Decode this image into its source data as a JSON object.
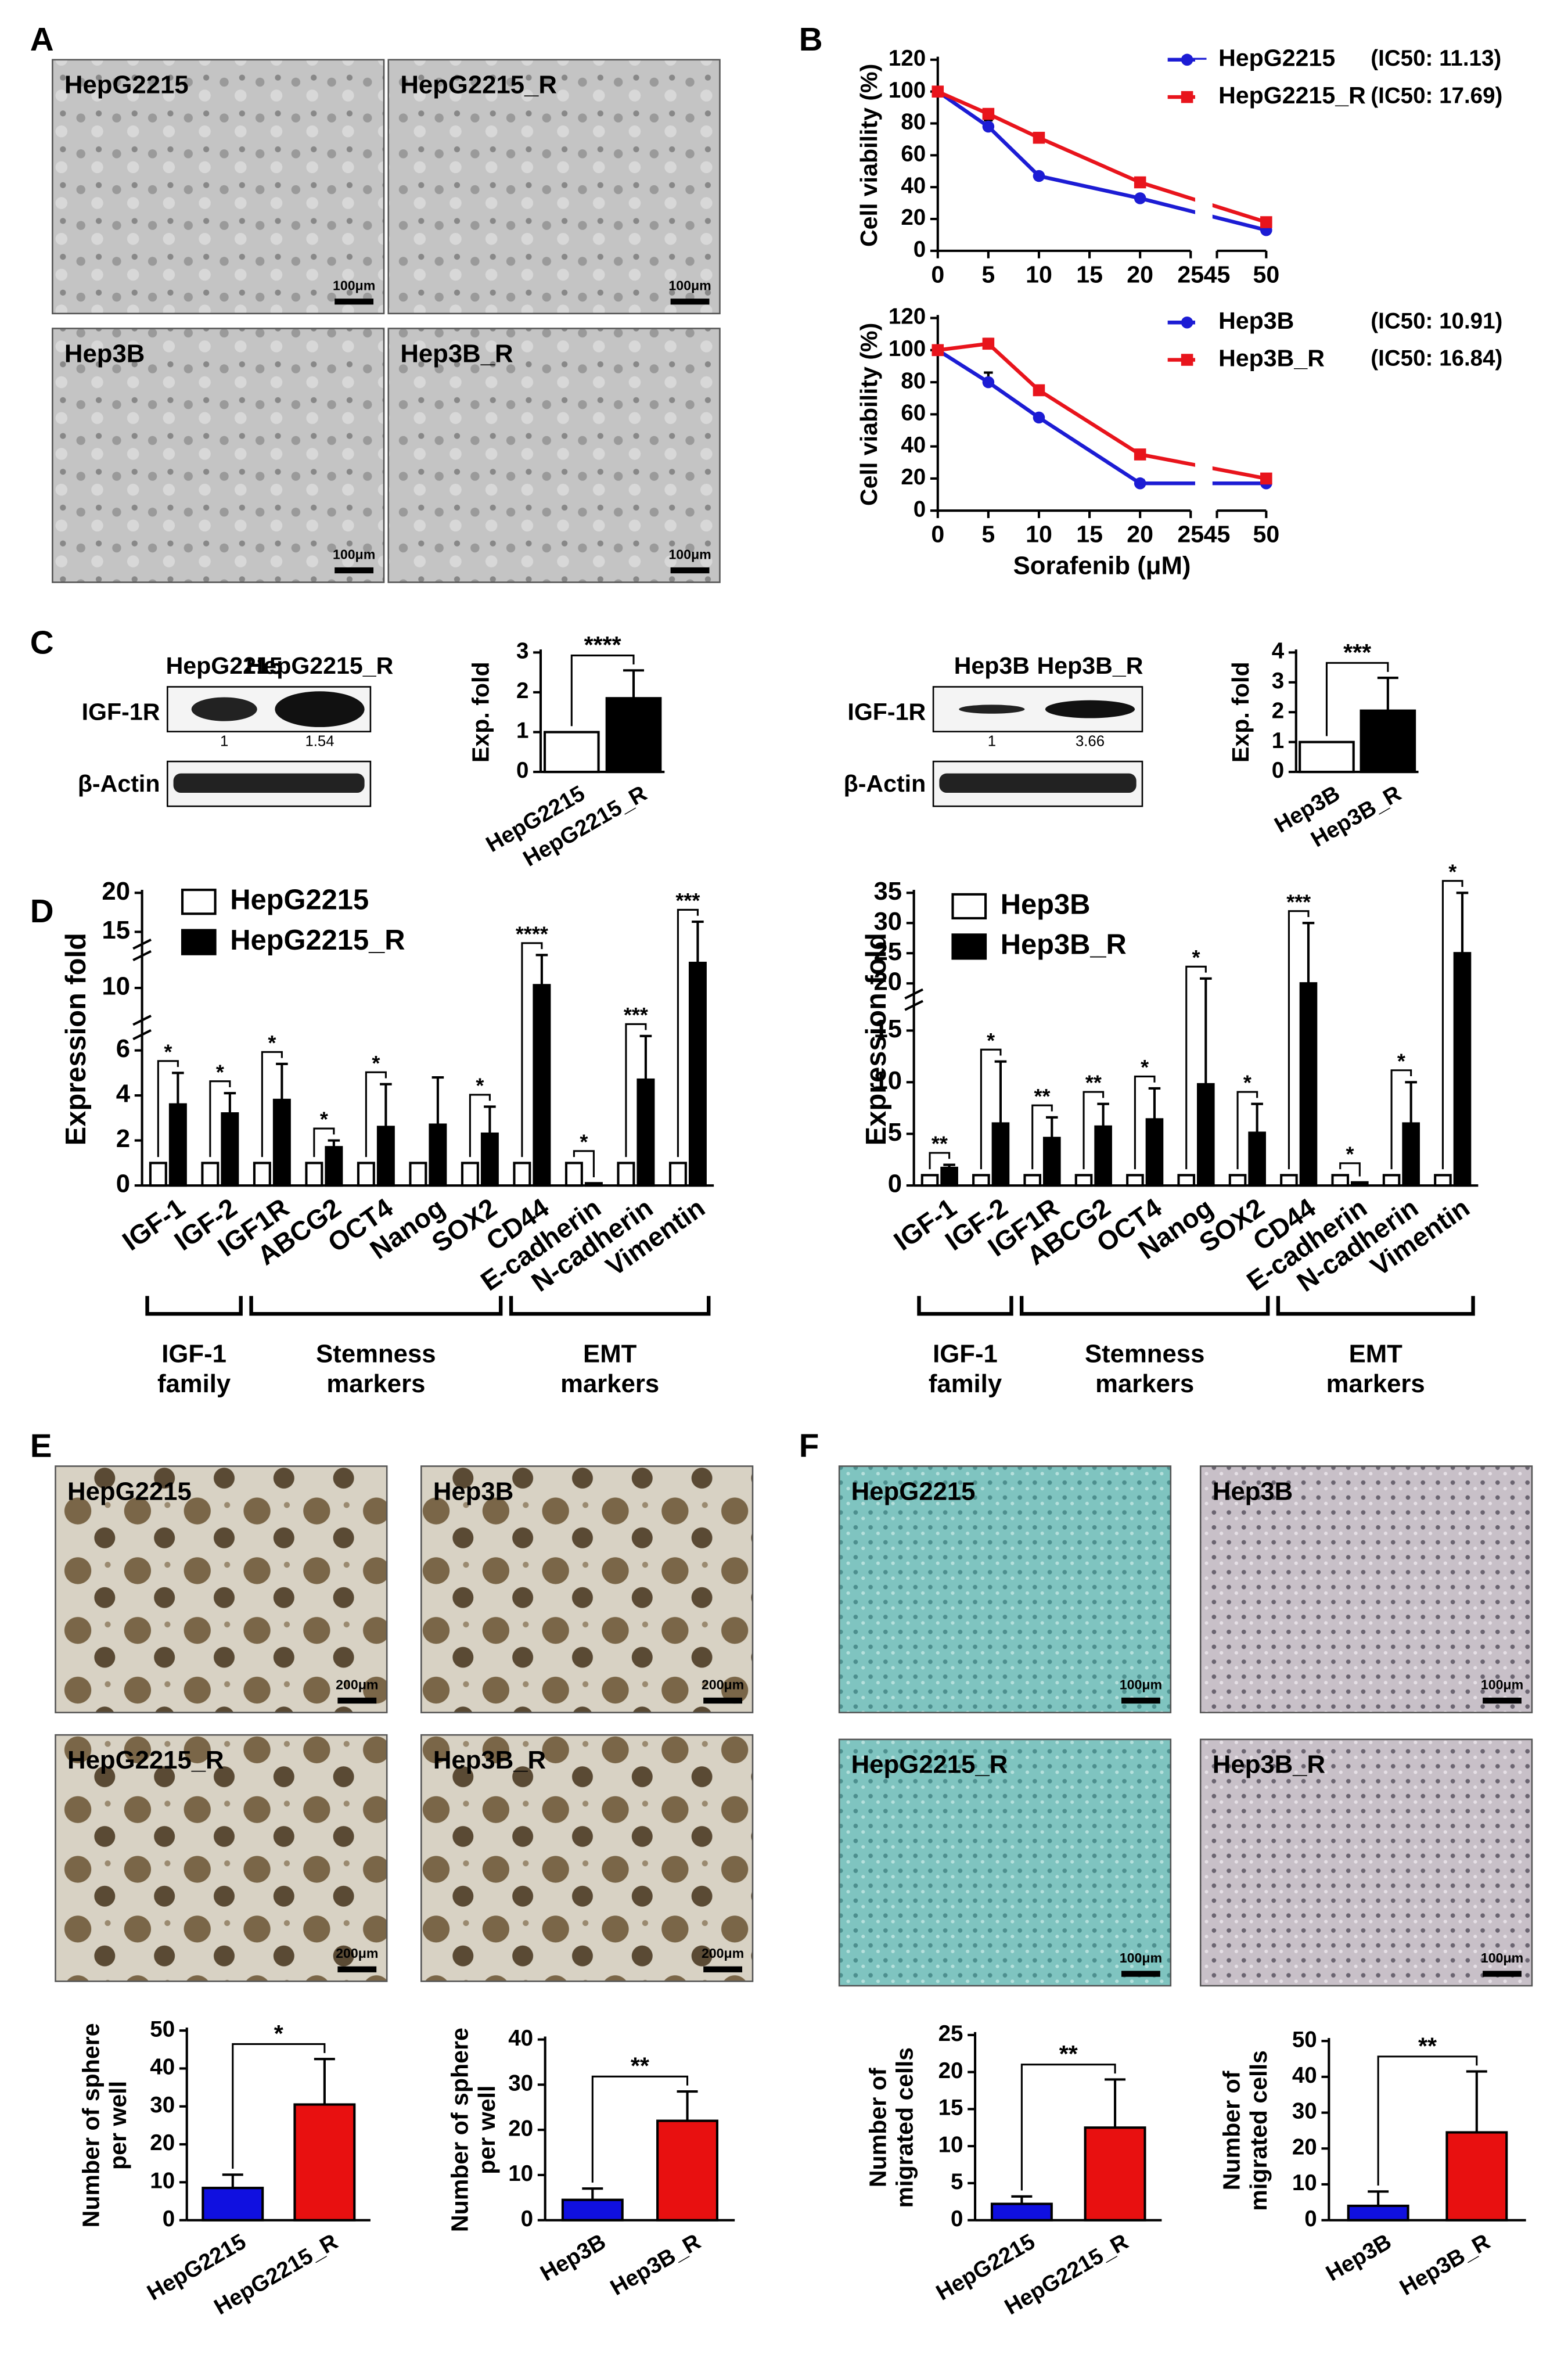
{
  "panels": {
    "letters": [
      "A",
      "B",
      "C",
      "D",
      "E",
      "F"
    ],
    "a_images": [
      "HepG2215",
      "HepG2215_R",
      "Hep3B",
      "Hep3B_R"
    ],
    "a_scale": "100μm",
    "c_blots": [
      {
        "lanes": [
          "HepG2215",
          "HepG2215_R"
        ],
        "rows": [
          "IGF-1R",
          "β-Actin"
        ],
        "band_values": [
          1,
          1.54
        ]
      },
      {
        "lanes": [
          "Hep3B",
          "Hep3B_R"
        ],
        "rows": [
          "IGF-1R",
          "β-Actin"
        ],
        "band_values": [
          1,
          3.66
        ]
      }
    ],
    "e_images": [
      "HepG2215",
      "Hep3B",
      "HepG2215_R",
      "Hep3B_R"
    ],
    "e_scale": "200μm",
    "f_images": [
      "HepG2215",
      "Hep3B",
      "HepG2215_R",
      "Hep3B_R"
    ],
    "f_scale": "100μm"
  },
  "chart_data": [
    {
      "type": "line",
      "ylabel": "Cell viability (%)",
      "x": [
        0,
        5,
        10,
        20,
        50
      ],
      "xlim": [
        0,
        50
      ],
      "xbreak": [
        25,
        45
      ],
      "xticks": [
        0,
        5,
        10,
        15,
        20,
        25,
        45,
        50
      ],
      "ylim": [
        0,
        120
      ],
      "yticks": [
        0,
        20,
        40,
        60,
        80,
        100,
        120
      ],
      "series": [
        {
          "name": "HepG2215",
          "color": "#1c1cd4",
          "marker": "circle",
          "annotation": "(IC50: 11.13)",
          "values": [
            100,
            78,
            47,
            33,
            13
          ],
          "errors": [
            0,
            4,
            1,
            1,
            2
          ]
        },
        {
          "name": "HepG2215_R",
          "color": "#e8141c",
          "marker": "square",
          "annotation": "(IC50: 17.69)",
          "values": [
            100,
            86,
            71,
            43,
            18
          ],
          "errors": [
            0,
            1,
            2,
            2,
            1
          ]
        }
      ]
    },
    {
      "type": "line",
      "ylabel": "Cell viability (%)",
      "xlabel": "Sorafenib (μM)",
      "x": [
        0,
        5,
        10,
        20,
        50
      ],
      "xlim": [
        0,
        50
      ],
      "xbreak": [
        25,
        45
      ],
      "xticks": [
        0,
        5,
        10,
        15,
        20,
        25,
        45,
        50
      ],
      "ylim": [
        0,
        120
      ],
      "yticks": [
        0,
        20,
        40,
        60,
        80,
        100,
        120
      ],
      "series": [
        {
          "name": "Hep3B",
          "color": "#1c1cd4",
          "marker": "circle",
          "annotation": "(IC50: 10.91)",
          "values": [
            100,
            80,
            58,
            17,
            17
          ],
          "errors": [
            0,
            6,
            1,
            2,
            1
          ]
        },
        {
          "name": "Hep3B_R",
          "color": "#e8141c",
          "marker": "square",
          "annotation": "(IC50: 16.84)",
          "values": [
            100,
            104,
            75,
            35,
            20
          ],
          "errors": [
            0,
            3,
            1,
            1,
            1
          ]
        }
      ]
    },
    {
      "type": "bar",
      "ylabel": "Exp. fold",
      "categories": [
        "HepG2215",
        "HepG2215_R"
      ],
      "values": [
        1,
        1.85
      ],
      "errors": [
        0,
        0.7
      ],
      "colors": [
        "#ffffff",
        "#000000"
      ],
      "ylim": [
        0,
        3
      ],
      "yticks": [
        0,
        1,
        2,
        3
      ],
      "significance": "****"
    },
    {
      "type": "bar",
      "ylabel": "Exp. fold",
      "categories": [
        "Hep3B",
        "Hep3B_R"
      ],
      "values": [
        1,
        2.05
      ],
      "errors": [
        0,
        1.1
      ],
      "colors": [
        "#ffffff",
        "#000000"
      ],
      "ylim": [
        0,
        4
      ],
      "yticks": [
        0,
        1,
        2,
        3,
        4
      ],
      "significance": "***"
    },
    {
      "type": "grouped_bar",
      "ylabel": "Expression fold",
      "categories": [
        "IGF-1",
        "IGF-2",
        "IGF1R",
        "ABCG2",
        "OCT4",
        "Nanog",
        "SOX2",
        "CD44",
        "E-cadherin",
        "N-cadherin",
        "Vimentin"
      ],
      "ylim": [
        0,
        20
      ],
      "ysegments": [
        [
          0,
          6.5
        ],
        [
          8,
          12
        ],
        [
          14,
          20
        ]
      ],
      "yticks": [
        0,
        2,
        4,
        6,
        10,
        15,
        20
      ],
      "series": [
        {
          "name": "HepG2215",
          "color": "#ffffff",
          "values": [
            1,
            1,
            1,
            1,
            1,
            1,
            1,
            1,
            1,
            1,
            1
          ]
        },
        {
          "name": "HepG2215_R",
          "color": "#000000",
          "values": [
            3.6,
            3.2,
            3.8,
            1.7,
            2.6,
            2.7,
            2.3,
            10.2,
            0.1,
            4.7,
            11.8
          ],
          "errors": [
            1.4,
            0.9,
            1.6,
            0.3,
            1.9,
            2.1,
            1.2,
            2.3,
            0,
            2.0,
            4.5
          ]
        }
      ],
      "significance": [
        "*",
        "*",
        "*",
        "*",
        "*",
        null,
        "*",
        "****",
        "*",
        "***",
        "***"
      ],
      "groups": [
        [
          "IGF-1",
          "family"
        ],
        [
          "Stemness",
          "markers"
        ],
        [
          "EMT",
          "markers"
        ]
      ]
    },
    {
      "type": "grouped_bar",
      "ylabel": "Expression fold",
      "categories": [
        "IGF-1",
        "IGF-2",
        "IGF1R",
        "ABCG2",
        "OCT4",
        "Nanog",
        "SOX2",
        "CD44",
        "E-cadherin",
        "N-cadherin",
        "Vimentin"
      ],
      "ylim": [
        0,
        35
      ],
      "ysegments": [
        [
          0,
          17
        ],
        [
          19,
          35
        ]
      ],
      "yticks": [
        0,
        5,
        10,
        15,
        20,
        25,
        30,
        35
      ],
      "series": [
        {
          "name": "Hep3B",
          "color": "#ffffff",
          "values": [
            1,
            1,
            1,
            1,
            1,
            1,
            1,
            1,
            1,
            1,
            1
          ]
        },
        {
          "name": "Hep3B_R",
          "color": "#000000",
          "values": [
            1.7,
            6,
            4.6,
            5.7,
            6.4,
            9.8,
            5.1,
            20,
            0.3,
            6,
            25
          ],
          "errors": [
            0.3,
            6,
            2,
            2.2,
            3,
            11,
            2.8,
            10,
            0,
            4,
            10
          ]
        }
      ],
      "significance": [
        "**",
        "*",
        "**",
        "**",
        "*",
        "*",
        "*",
        "***",
        "*",
        "*",
        "*"
      ],
      "groups": [
        [
          "IGF-1",
          "family"
        ],
        [
          "Stemness",
          "markers"
        ],
        [
          "EMT",
          "markers"
        ]
      ]
    },
    {
      "type": "bar",
      "ylabel": [
        "Number of sphere",
        "per well"
      ],
      "categories": [
        "HepG2215",
        "HepG2215_R"
      ],
      "values": [
        8.5,
        30.5
      ],
      "errors": [
        3.5,
        12
      ],
      "colors": [
        "#1010e0",
        "#e81010"
      ],
      "ylim": [
        0,
        50
      ],
      "yticks": [
        0,
        10,
        20,
        30,
        40,
        50
      ],
      "significance": "*"
    },
    {
      "type": "bar",
      "ylabel": [
        "Number of sphere",
        "per well"
      ],
      "categories": [
        "Hep3B",
        "Hep3B_R"
      ],
      "values": [
        4.5,
        22
      ],
      "errors": [
        2.5,
        6.5
      ],
      "colors": [
        "#1010e0",
        "#e81010"
      ],
      "ylim": [
        0,
        40
      ],
      "yticks": [
        0,
        10,
        20,
        30,
        40
      ],
      "significance": "**"
    },
    {
      "type": "bar",
      "ylabel": [
        "Number of",
        "migrated cells"
      ],
      "categories": [
        "HepG2215",
        "HepG2215_R"
      ],
      "values": [
        2.2,
        12.5
      ],
      "errors": [
        1,
        6.5
      ],
      "colors": [
        "#1010e0",
        "#e81010"
      ],
      "ylim": [
        0,
        25
      ],
      "yticks": [
        0,
        5,
        10,
        15,
        20,
        25
      ],
      "significance": "**"
    },
    {
      "type": "bar",
      "ylabel": [
        "Number of",
        "migrated cells"
      ],
      "categories": [
        "Hep3B",
        "Hep3B_R"
      ],
      "values": [
        4,
        24.5
      ],
      "errors": [
        4,
        17
      ],
      "colors": [
        "#1010e0",
        "#e81010"
      ],
      "ylim": [
        0,
        50
      ],
      "yticks": [
        0,
        10,
        20,
        30,
        40,
        50
      ],
      "significance": "**"
    }
  ]
}
